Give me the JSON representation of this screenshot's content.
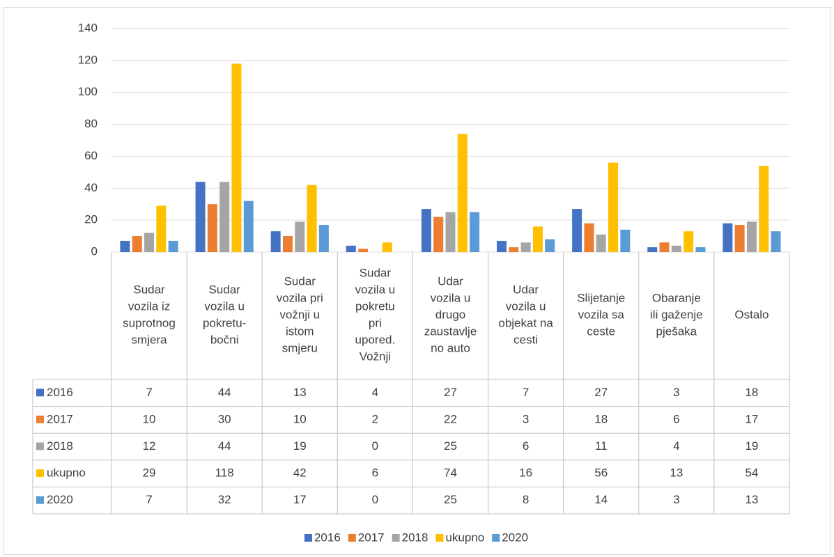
{
  "chart_data": {
    "type": "bar",
    "categories": [
      "Sudar\nvozila iz\nsuprotnog\nsmjera",
      "Sudar\nvozila u\npokretu-\nbočni",
      "Sudar\nvozila pri\nvožnji u\nistom\nsmjeru",
      "Sudar\nvozila u\npokretu\npri\nupored.\nVožnji",
      "Udar\nvozila u\ndrugo\nzaustavlje\nno auto",
      "Udar\nvozila u\nobjekat na\ncesti",
      "Slijetanje\nvozila sa\nceste",
      "Obaranje\nili gaženje\npješaka",
      "Ostalo"
    ],
    "series": [
      {
        "name": "2016",
        "color": "#4472c4",
        "values": [
          7,
          44,
          13,
          4,
          27,
          7,
          27,
          3,
          18
        ]
      },
      {
        "name": "2017",
        "color": "#ed7d31",
        "values": [
          10,
          30,
          10,
          2,
          22,
          3,
          18,
          6,
          17
        ]
      },
      {
        "name": "2018",
        "color": "#a5a5a5",
        "values": [
          12,
          44,
          19,
          0,
          25,
          6,
          11,
          4,
          19
        ]
      },
      {
        "name": "ukupno",
        "color": "#ffc000",
        "values": [
          29,
          118,
          42,
          6,
          74,
          16,
          56,
          13,
          54
        ]
      },
      {
        "name": "2020",
        "color": "#5b9bd5",
        "values": [
          7,
          32,
          17,
          0,
          25,
          8,
          14,
          3,
          13
        ]
      }
    ],
    "ylim": [
      0,
      140
    ],
    "yticks": [
      0,
      20,
      40,
      60,
      80,
      100,
      120,
      140
    ],
    "grid": true,
    "legend": "bottom"
  }
}
